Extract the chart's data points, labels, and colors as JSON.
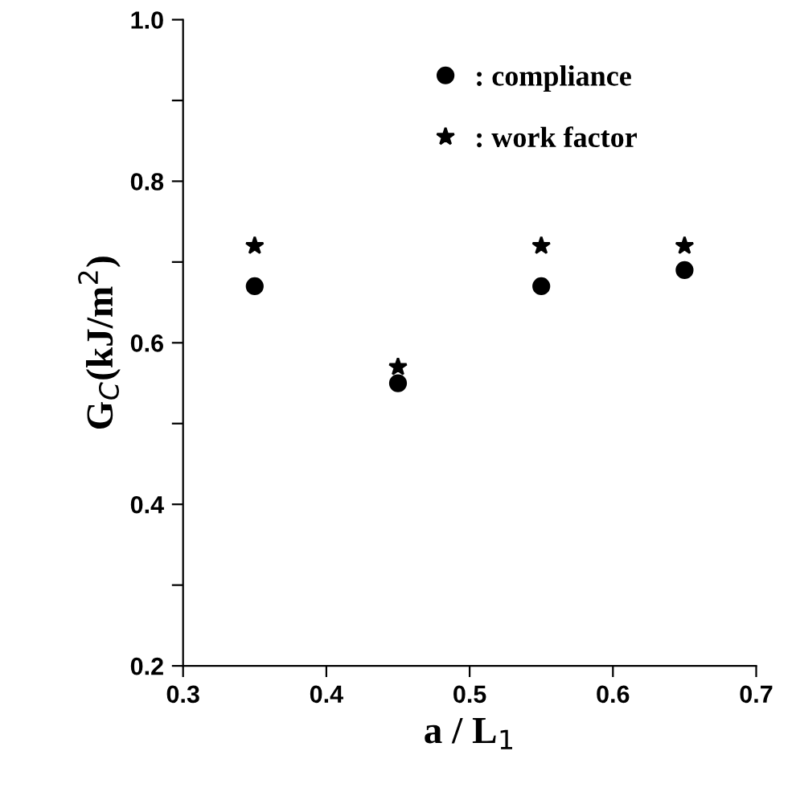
{
  "chart_data": {
    "type": "scatter",
    "xlabel": "a / L$_{1}$",
    "ylabel": "G$_{C}$(kJ/m$^{2}$)",
    "x": [
      0.35,
      0.45,
      0.55,
      0.65
    ],
    "series": [
      {
        "name": ": compliance",
        "color": "#000000",
        "marker": "circle",
        "values": [
          0.67,
          0.55,
          0.67,
          0.69
        ]
      },
      {
        "name": ": work factor",
        "color": "#000000",
        "marker": "star",
        "values": [
          0.72,
          0.57,
          0.72,
          0.72
        ]
      }
    ],
    "xlim": [
      0.3,
      0.7
    ],
    "xticks": [
      0.3,
      0.4,
      0.5,
      0.6,
      0.7
    ],
    "ylim": [
      0.2,
      1.0
    ],
    "yticks": [
      0.2,
      {
        "value": 0.3,
        "label": null
      },
      0.4,
      {
        "value": 0.5,
        "label": null
      },
      0.6,
      {
        "value": 0.7,
        "label": null
      },
      0.8,
      {
        "value": 0.9,
        "label": null
      },
      {
        "value": 1.0,
        "label": "1.0"
      }
    ],
    "grid": false,
    "legend": "top"
  }
}
